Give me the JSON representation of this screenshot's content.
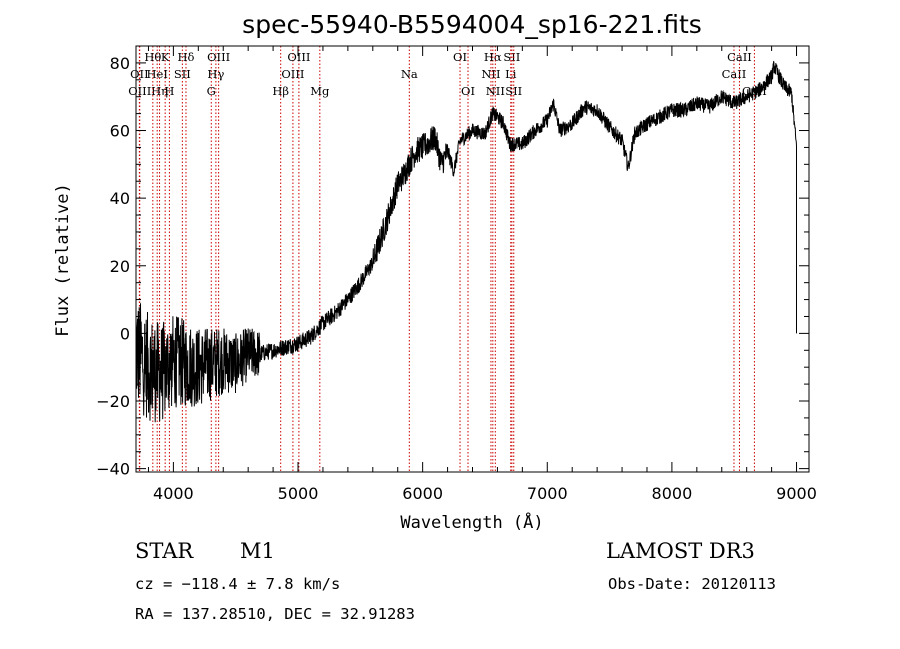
{
  "chart_data": {
    "type": "line",
    "title": "spec-55940-B5594004_sp16-221.fits",
    "xlabel": "Wavelength (Å)",
    "ylabel": "Flux (relative)",
    "xlim": [
      3700,
      9100
    ],
    "ylim": [
      -41,
      85
    ],
    "x_ticks": [
      4000,
      5000,
      6000,
      7000,
      8000,
      9000
    ],
    "y_ticks": [
      -40,
      -20,
      0,
      20,
      40,
      60,
      80
    ],
    "x_tick_labels": [
      "4000",
      "5000",
      "6000",
      "7000",
      "8000",
      "9000"
    ],
    "y_tick_labels": [
      "−40",
      "−20",
      "0",
      "20",
      "40",
      "60",
      "80"
    ],
    "grid": false,
    "series": [
      {
        "color": "#000000",
        "x": [
          3700,
          3800,
          3900,
          4000,
          4100,
          4200,
          4300,
          4400,
          4500,
          4600,
          4700,
          4800,
          4900,
          5000,
          5100,
          5200,
          5300,
          5400,
          5500,
          5600,
          5700,
          5750,
          5800,
          5850,
          5900,
          5950,
          6000,
          6100,
          6150,
          6200,
          6250,
          6300,
          6400,
          6500,
          6560,
          6600,
          6650,
          6700,
          6800,
          6900,
          7000,
          7050,
          7100,
          7200,
          7300,
          7400,
          7500,
          7600,
          7650,
          7700,
          7800,
          7900,
          8000,
          8100,
          8200,
          8300,
          8400,
          8500,
          8600,
          8700,
          8800,
          8820,
          8900,
          8960,
          9000
        ],
        "y": [
          -5,
          -10,
          -12,
          -8,
          -9,
          -10,
          -9,
          -8,
          -9,
          -6,
          -6,
          -5,
          -4,
          -3,
          -1,
          3,
          6,
          10,
          15,
          21,
          32,
          38,
          44,
          47,
          51,
          54,
          55,
          58,
          50,
          54,
          48,
          57,
          60,
          59,
          65,
          64,
          62,
          56,
          56,
          60,
          63,
          68,
          60,
          62,
          67,
          66,
          61,
          57,
          49,
          59,
          62,
          64,
          66,
          66,
          68,
          67,
          70,
          68,
          70,
          72,
          76,
          79,
          73,
          71,
          55
        ]
      }
    ],
    "line_markers": [
      {
        "wl": 3934,
        "label": "K",
        "row": 1
      },
      {
        "wl": 3968,
        "label": "H",
        "row": 3
      },
      {
        "wl": 3889,
        "label": "Hη",
        "row": 3
      },
      {
        "wl": 3870,
        "label": "HeI",
        "row": 2
      },
      {
        "wl": 3727,
        "label": "OII",
        "row": 2
      },
      {
        "wl": 3730,
        "label": "OIII",
        "row": 3
      },
      {
        "wl": 3835,
        "label": "Hθ",
        "row": 1
      },
      {
        "wl": 4101,
        "label": "Hδ",
        "row": 1
      },
      {
        "wl": 4072,
        "label": "SII",
        "row": 2
      },
      {
        "wl": 4304,
        "label": "G",
        "row": 3
      },
      {
        "wl": 4341,
        "label": "Hγ",
        "row": 2
      },
      {
        "wl": 4363,
        "label": "OIII",
        "row": 1
      },
      {
        "wl": 4861,
        "label": "Hβ",
        "row": 3
      },
      {
        "wl": 4959,
        "label": "OIII",
        "row": 2
      },
      {
        "wl": 5007,
        "label": "OIII",
        "row": 1
      },
      {
        "wl": 5175,
        "label": "Mg",
        "row": 3
      },
      {
        "wl": 5893,
        "label": "Na",
        "row": 2
      },
      {
        "wl": 6300,
        "label": "OI",
        "row": 1
      },
      {
        "wl": 6364,
        "label": "OI",
        "row": 3
      },
      {
        "wl": 6548,
        "label": "NII",
        "row": 2
      },
      {
        "wl": 6563,
        "label": "Hα",
        "row": 1
      },
      {
        "wl": 6583,
        "label": "NII",
        "row": 3
      },
      {
        "wl": 6707,
        "label": "Li",
        "row": 2
      },
      {
        "wl": 6716,
        "label": "SII",
        "row": 1
      },
      {
        "wl": 6731,
        "label": "SII",
        "row": 3
      },
      {
        "wl": 8498,
        "label": "CaII",
        "row": 2
      },
      {
        "wl": 8542,
        "label": "CaII",
        "row": 1
      },
      {
        "wl": 8662,
        "label": "CaII",
        "row": 3
      }
    ],
    "marker_color": "#cc0000",
    "axis_color": "#000000"
  },
  "info": {
    "object_class": "STAR",
    "subclass": "M1",
    "survey": "LAMOST DR3",
    "redshift": "cz = −118.4 ± 7.8 km/s",
    "obs_date": "Obs-Date: 20120113",
    "coords": "RA = 137.28510, DEC =  32.91283"
  }
}
